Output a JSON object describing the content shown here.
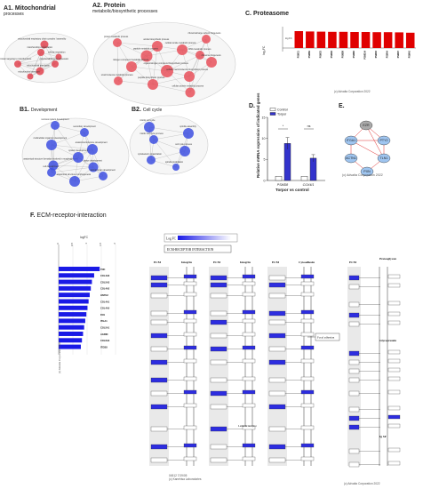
{
  "panels": {
    "a1": {
      "letter": "A1.",
      "title": "Mitochondrial",
      "subtitle": "processes",
      "terms": [
        "mitochondrial respiratory chain complex I assembly",
        "mitochondrion organization",
        "cellular respiration",
        "mitochondrial gene expression",
        "protein targeting to mitochondrion",
        "mitochondrial translation",
        "mitochondrial transport"
      ]
    },
    "a2": {
      "letter": "A2.",
      "title": "Protein",
      "subtitle": "metabolic/biosynthetic processes",
      "terms": [
        "protein metabolic process",
        "amide biosynthetic process",
        "peptide metabolic process",
        "ribosomal large subunit biogenesis",
        "rRNA metabolic process",
        "ribosome biogenesis",
        "cellular amide metabolic process",
        "nitrogen compound metabolic process",
        "organonitrogen compound biosynthetic process",
        "small molecule metabolic process",
        "cellular macromolecule biosynthetic process",
        "peptide biosynthetic process",
        "cellular protein metabolic process"
      ]
    },
    "b1": {
      "letter": "B1.",
      "title": "Development",
      "terms": [
        "nervous system development",
        "secondary development",
        "multicellular organism development",
        "anatomical structure development",
        "anatomical structure formation involved in morphogenesis",
        "system development",
        "cell development",
        "tissue development",
        "animal organ development",
        "anatomical structure morphogenesis"
      ]
    },
    "b2": {
      "letter": "B2.",
      "title": "Cell cycle",
      "terms": [
        "mitotic cell cycle",
        "mitotic cell cycle process",
        "spindle assembly",
        "cell cycle process",
        "cytoskeleton organization",
        "spindle localization"
      ]
    },
    "c": {
      "letter": "C.",
      "title": "Proteasome",
      "ylabel": "log₂FC",
      "axis_label": "log FC",
      "copyright": "(c) Advaita Corporation 2022",
      "chart_data": {
        "type": "bar",
        "title": "Proteasome",
        "ylabel": "log₂FC",
        "categories": [
          "PSMC1",
          "PSMB4",
          "PSMC5",
          "PSMD2",
          "PSMD8",
          "PSMB3",
          "PSMD14",
          "PSMA5",
          "PSMA4",
          "PSMD7",
          "PSMA3"
        ],
        "values": [
          0.95,
          0.93,
          0.92,
          0.91,
          0.91,
          0.9,
          0.9,
          0.89,
          0.89,
          0.88,
          0.86
        ],
        "ylim": [
          0,
          1
        ]
      }
    },
    "d": {
      "letter": "D.",
      "ylabel": "Relative mRNA expression of indicated genes",
      "xlabel": "Torpor vs control",
      "legend": [
        {
          "name": "Control",
          "color": "#ffffff"
        },
        {
          "name": "Torpor",
          "color": "#3333cc"
        }
      ],
      "chart_data": {
        "type": "bar",
        "categories": [
          "PSMD8",
          "COX4I1"
        ],
        "series": [
          {
            "name": "Control",
            "values": [
              1,
              1
            ]
          },
          {
            "name": "Torpor",
            "values": [
              8.8,
              5.3
            ]
          }
        ],
        "significance": [
          "*",
          "ns"
        ],
        "ylim": [
          0,
          15
        ],
        "yticks": [
          0,
          5,
          10,
          15
        ]
      }
    },
    "e": {
      "letter": "E.",
      "copyright": "(c) Advaita Corporation 2022",
      "nodes": [
        "EZR",
        "ITGA1",
        "PTY2",
        "ACTN1",
        "TLN1",
        "PXN"
      ]
    },
    "f": {
      "letter": "F.",
      "title": "ECM-receptor-interaction",
      "axis_label": "logFC",
      "axis_ticks": [
        "0",
        "0.5",
        "1",
        "1.5",
        "2"
      ],
      "copyright_side": "(c) Advaita Corporation 2022",
      "bar_chart": {
        "type": "bar",
        "categories": [
          "TNC",
          "COL4A6",
          "COL5A3",
          "COL4A2",
          "HSPG2",
          "COL4A1",
          "COL4A5",
          "FN1",
          "ITGA1",
          "COL5A1",
          "AGRIN",
          "COL6A3",
          "ITGB8"
        ],
        "values": [
          1.85,
          1.6,
          1.5,
          1.45,
          1.4,
          1.35,
          1.3,
          1.25,
          1.2,
          1.15,
          1.1,
          1.05,
          1.0
        ]
      },
      "legend_title": "Log FC",
      "kegg_title": "ECM-RECEPTOR INTERACTION",
      "section_ecm": "ECM",
      "section_integrin": "Integrin",
      "section_cytoadhesin": "Cytoadhesin",
      "section_proteoglycan": "Proteoglycan",
      "section_glycoprotein": "Glycoprotein",
      "section_igsf": "Ig SF",
      "focal": "Focal adhesion",
      "laminin_receptor": "Laminin receptor",
      "kegg_copy": "04512 7/19/05",
      "kegg_lab": "(c) Kanehisa Laboratories",
      "copyright_bottom": "(c) Advaita Corporation 2022"
    }
  }
}
